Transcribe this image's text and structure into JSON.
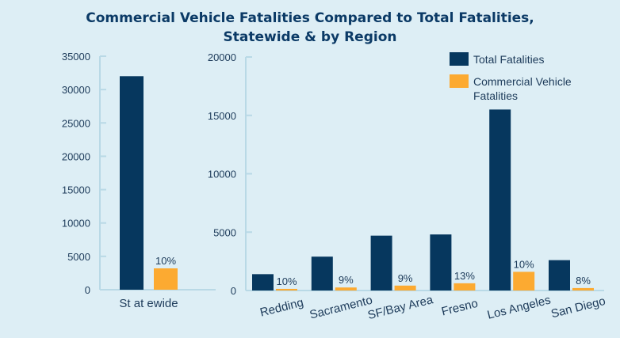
{
  "chart_data": [
    {
      "type": "bar",
      "title": "Commercial Vehicle Fatalities Compared to Total Fatalities, Statewide & by Region",
      "title_lines": [
        "Commercial Vehicle Fatalities Compared to Total Fatalities,",
        "Statewide & by Region"
      ],
      "categories": [
        "St at ewide"
      ],
      "ylim": [
        0,
        35000
      ],
      "yticks": [
        0,
        5000,
        10000,
        15000,
        20000,
        25000,
        30000,
        35000
      ],
      "series": [
        {
          "name": "Total Fatalities",
          "values": [
            32000
          ],
          "color": "#06375e"
        },
        {
          "name": "Commercial Vehicle Fatalities",
          "values": [
            3200
          ],
          "color": "#fcaa31",
          "labels": [
            "10%"
          ]
        }
      ]
    },
    {
      "type": "bar",
      "categories": [
        "Redding",
        "Sacramento",
        "SF/Bay Area",
        "Fresno",
        "Los Angeles",
        "San Diego"
      ],
      "ylim": [
        0,
        20000
      ],
      "yticks": [
        0,
        5000,
        10000,
        15000,
        20000
      ],
      "legend": {
        "placement": "top-right",
        "entries": [
          "Total Fatalities",
          [
            "Commercial Vehicle",
            "Fatalities"
          ]
        ]
      },
      "series": [
        {
          "name": "Total Fatalities",
          "values": [
            1400,
            2900,
            4700,
            4800,
            15500,
            2600
          ],
          "color": "#06375e"
        },
        {
          "name": "Commercial Vehicle Fatalities",
          "values": [
            140,
            260,
            420,
            620,
            1600,
            210
          ],
          "color": "#fcaa31",
          "labels": [
            "10%",
            "9%",
            "9%",
            "13%",
            "10%",
            "8%"
          ]
        }
      ]
    }
  ]
}
